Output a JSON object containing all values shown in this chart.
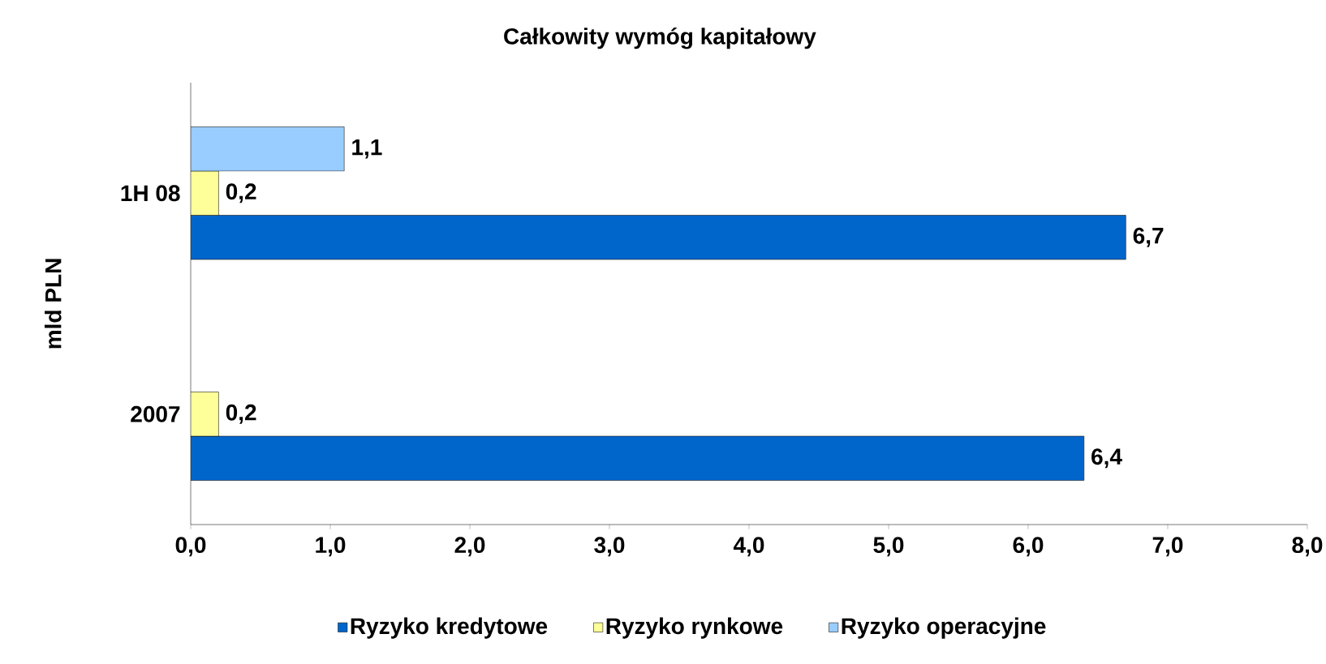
{
  "chart_data": {
    "type": "bar",
    "orientation": "horizontal",
    "title": "Całkowity wymóg kapitałowy",
    "ylabel": "mld PLN",
    "categories": [
      "1H 08",
      "2007"
    ],
    "series": [
      {
        "name": "Ryzyko kredytowe",
        "color": "#0066cc",
        "values": [
          6.7,
          6.4
        ],
        "value_labels": [
          "6,7",
          "6,4"
        ]
      },
      {
        "name": "Ryzyko rynkowe",
        "color": "#ffff99",
        "values": [
          0.2,
          0.2
        ],
        "value_labels": [
          "0,2",
          "0,2"
        ]
      },
      {
        "name": "Ryzyko operacyjne",
        "color": "#99ccff",
        "values": [
          1.1,
          null
        ],
        "value_labels": [
          "1,1",
          null
        ]
      }
    ],
    "xlim": [
      0,
      8
    ],
    "xticks": [
      {
        "value": 0,
        "label": "0,0"
      },
      {
        "value": 1,
        "label": "1,0"
      },
      {
        "value": 2,
        "label": "2,0"
      },
      {
        "value": 3,
        "label": "3,0"
      },
      {
        "value": 4,
        "label": "4,0"
      },
      {
        "value": 5,
        "label": "5,0"
      },
      {
        "value": 6,
        "label": "6,0"
      },
      {
        "value": 7,
        "label": "7,0"
      },
      {
        "value": 8,
        "label": "8,0"
      }
    ],
    "grid": false,
    "legend": "bottom"
  }
}
